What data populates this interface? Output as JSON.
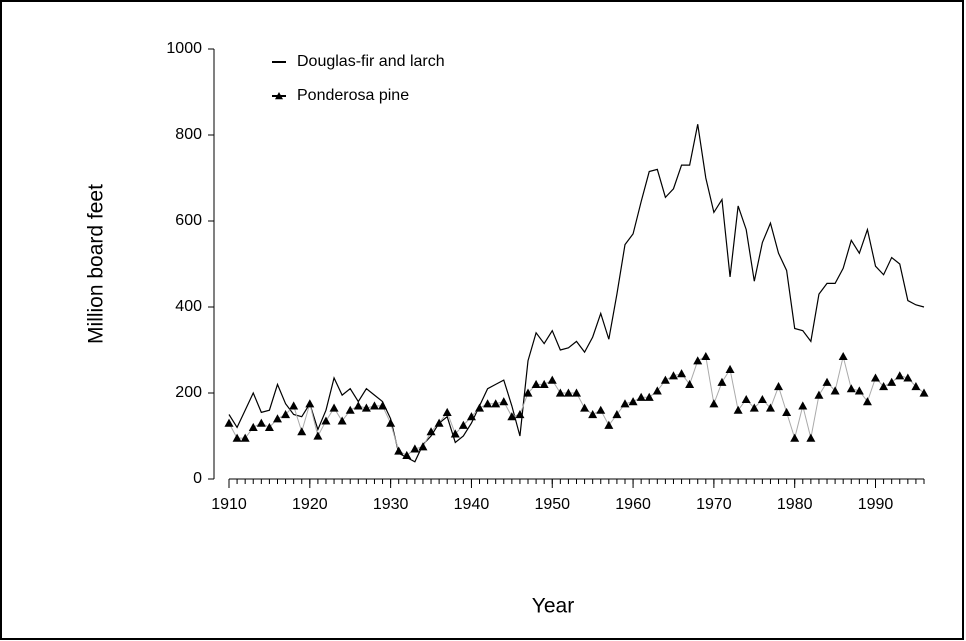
{
  "chart_data": {
    "type": "line",
    "xlabel": "Year",
    "ylabel": "Million board feet",
    "x": [
      1910,
      1911,
      1912,
      1913,
      1914,
      1915,
      1916,
      1917,
      1918,
      1919,
      1920,
      1921,
      1922,
      1923,
      1924,
      1925,
      1926,
      1927,
      1928,
      1929,
      1930,
      1931,
      1932,
      1933,
      1934,
      1935,
      1936,
      1937,
      1938,
      1939,
      1940,
      1941,
      1942,
      1943,
      1944,
      1945,
      1946,
      1947,
      1948,
      1949,
      1950,
      1951,
      1952,
      1953,
      1954,
      1955,
      1956,
      1957,
      1958,
      1959,
      1960,
      1961,
      1962,
      1963,
      1964,
      1965,
      1966,
      1967,
      1968,
      1969,
      1970,
      1971,
      1972,
      1973,
      1974,
      1975,
      1976,
      1977,
      1978,
      1979,
      1980,
      1981,
      1982,
      1983,
      1984,
      1985,
      1986,
      1987,
      1988,
      1989,
      1990,
      1991,
      1992,
      1993,
      1994,
      1995,
      1996
    ],
    "series": [
      {
        "name": "Douglas-fir and larch",
        "color": "#000000",
        "marker": "none",
        "values": [
          150,
          120,
          160,
          200,
          155,
          160,
          220,
          175,
          150,
          145,
          175,
          115,
          160,
          235,
          195,
          210,
          180,
          210,
          195,
          180,
          140,
          60,
          50,
          40,
          80,
          100,
          130,
          145,
          85,
          100,
          130,
          170,
          210,
          220,
          230,
          170,
          100,
          275,
          340,
          315,
          345,
          300,
          305,
          320,
          295,
          330,
          385,
          325,
          430,
          545,
          570,
          645,
          715,
          720,
          655,
          675,
          730,
          730,
          825,
          700,
          620,
          650,
          470,
          635,
          580,
          460,
          550,
          595,
          525,
          485,
          350,
          345,
          320,
          430,
          455,
          455,
          490,
          555,
          525,
          580,
          495,
          475,
          515,
          500,
          415,
          405,
          400
        ]
      },
      {
        "name": "Ponderosa pine",
        "color": "#000000",
        "line_color": "#aaaaaa",
        "marker": "triangle",
        "values": [
          130,
          95,
          95,
          120,
          130,
          120,
          140,
          150,
          170,
          110,
          175,
          100,
          135,
          165,
          135,
          160,
          170,
          165,
          170,
          170,
          130,
          65,
          55,
          70,
          75,
          110,
          130,
          155,
          105,
          125,
          145,
          165,
          175,
          175,
          180,
          145,
          150,
          200,
          220,
          220,
          230,
          200,
          200,
          200,
          165,
          150,
          160,
          125,
          150,
          175,
          180,
          190,
          190,
          205,
          230,
          240,
          245,
          220,
          275,
          285,
          175,
          225,
          255,
          160,
          185,
          165,
          185,
          165,
          215,
          155,
          95,
          170,
          95,
          195,
          225,
          205,
          285,
          210,
          205,
          180,
          235,
          215,
          225,
          240,
          235,
          215,
          200
        ]
      }
    ],
    "xlim": [
      1910,
      1996
    ],
    "xticks": [
      1910,
      1920,
      1930,
      1940,
      1950,
      1960,
      1970,
      1980,
      1990
    ],
    "ylim": [
      0,
      1000
    ],
    "yticks": [
      0,
      200,
      400,
      600,
      800,
      1000
    ],
    "grid": false,
    "legend": "upper left"
  }
}
